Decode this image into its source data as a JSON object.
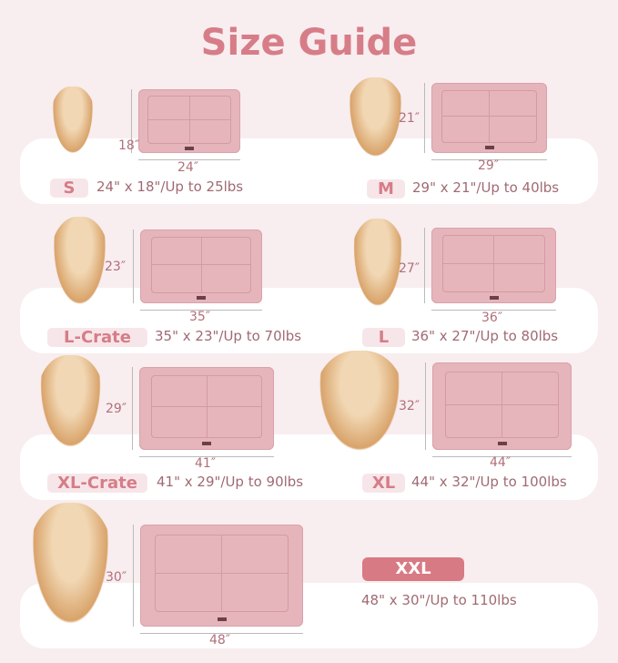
{
  "title": "Size Guide",
  "colors": {
    "accent": "#d67d88",
    "mat": "#e6b5bc",
    "background": "#f8edef"
  },
  "sizes": [
    {
      "label": "S",
      "width": "24″",
      "height": "18″",
      "desc": "24\" x 18\"/Up to 25lbs",
      "dog": "chihuahua"
    },
    {
      "label": "M",
      "width": "29″",
      "height": "21″",
      "desc": "29\" x 21\"/Up to 40lbs",
      "dog": "poodle-mix"
    },
    {
      "label": "L-Crate",
      "width": "35″",
      "height": "23″",
      "desc": "35\" x 23\"/Up to 70lbs",
      "dog": "corgi"
    },
    {
      "label": "L",
      "width": "36″",
      "height": "27″",
      "desc": "36\" x 27\"/Up to 80lbs",
      "dog": "border-collie"
    },
    {
      "label": "XL-Crate",
      "width": "41″",
      "height": "29″",
      "desc": "41\" x 29\"/Up to 90lbs",
      "dog": "shiba-inu"
    },
    {
      "label": "XL",
      "width": "44″",
      "height": "32″",
      "desc": "44\" x 32\"/Up to 100lbs",
      "dog": "golden-retriever"
    },
    {
      "label": "XXL",
      "width": "48″",
      "height": "30″",
      "desc": "48\" x 30\"/Up to 110lbs",
      "dog": "golden-retriever"
    }
  ]
}
